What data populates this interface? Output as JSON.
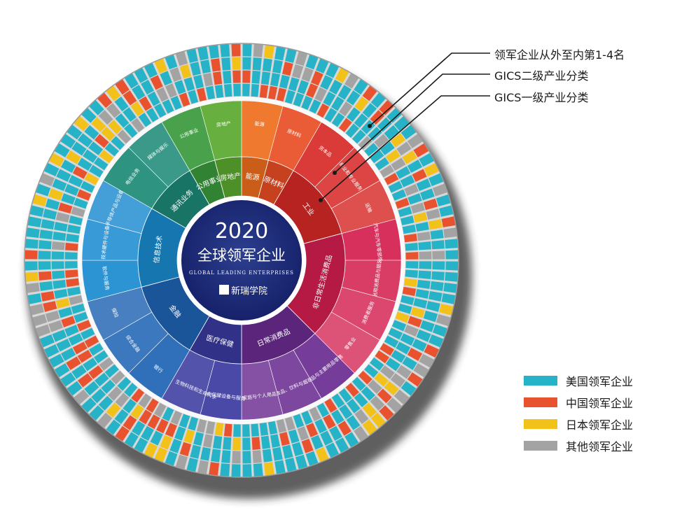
{
  "chart_data": {
    "type": "sunburst",
    "center": {
      "year": "2020",
      "title": "全球领军企业",
      "subtitle": "GLOBAL LEADING ENTERPRISES",
      "logo_text": "新瑞学院"
    },
    "annotations": [
      "领军企业从外至内第1-4名",
      "GICS二级产业分类",
      "GICS一级产业分类"
    ],
    "legend": [
      {
        "label": "美国领军企业",
        "color": "#27b3c7"
      },
      {
        "label": "中国领军企业",
        "color": "#e8522f"
      },
      {
        "label": "日本领军企业",
        "color": "#f2c21a"
      },
      {
        "label": "其他领军企业",
        "color": "#a3a3a3"
      }
    ],
    "sectors": [
      {
        "name": "能源",
        "color": "#ee6f1d",
        "sub": [
          "能源"
        ]
      },
      {
        "name": "原材料",
        "color": "#e94e25",
        "sub": [
          "原材料"
        ]
      },
      {
        "name": "工业",
        "color": "#d72a27",
        "sub": [
          "资本品",
          "商业和专业服务",
          "运输"
        ]
      },
      {
        "name": "非日常生活消费品",
        "color": "#d41f4f",
        "sub": [
          "汽车与汽车零部件",
          "耐用消费品与服装",
          "消费者服务",
          "零售业"
        ]
      },
      {
        "name": "日常消费品",
        "color": "#6a2c91",
        "sub": [
          "食品与主要用品零售",
          "食品、饮料与烟草",
          "家庭与个人用品"
        ]
      },
      {
        "name": "医疗保健",
        "color": "#3b3aa0",
        "sub": [
          "医疗保健设备与服务",
          "制药、生物科技和生命科学"
        ]
      },
      {
        "name": "金融",
        "color": "#1f64b4",
        "sub": [
          "银行",
          "综合金融",
          "保险"
        ]
      },
      {
        "name": "信息技术",
        "color": "#1b8bd0",
        "sub": [
          "软件与服务",
          "技术硬件与设备",
          "半导体产品与设备"
        ]
      },
      {
        "name": "通讯业务",
        "color": "#1d8a78",
        "sub": [
          "电信业务",
          "媒体与娱乐"
        ]
      },
      {
        "name": "公用事业",
        "color": "#3a9a3c",
        "sub": [
          "公用事业"
        ]
      },
      {
        "name": "房地产",
        "color": "#5aaa2f",
        "sub": [
          "房地产"
        ]
      }
    ]
  }
}
